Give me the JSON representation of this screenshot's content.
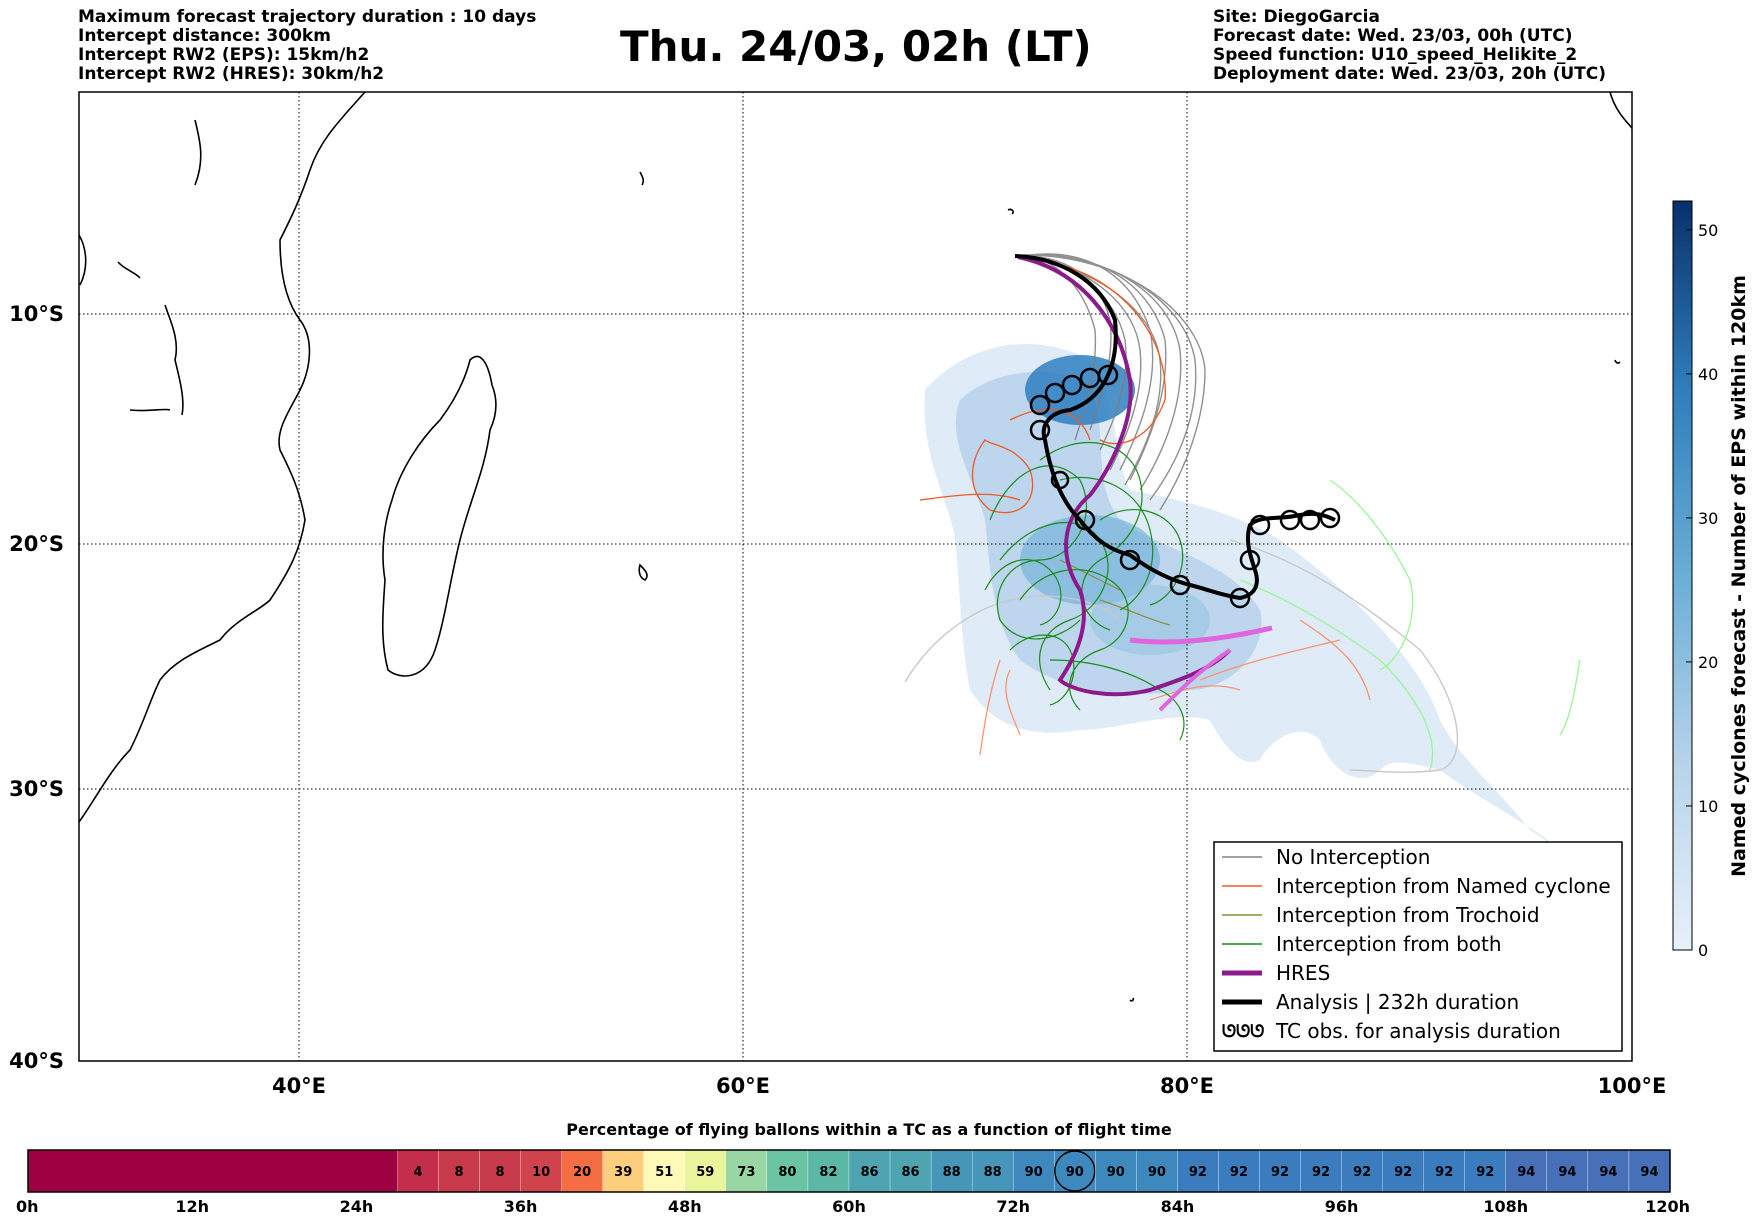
{
  "header_left": [
    "Maximum forecast trajectory duration : 10 days",
    "Intercept distance: 300km",
    "Intercept RW2 (EPS):  15km/h2",
    "Intercept RW2 (HRES): 30km/h2"
  ],
  "title": "Thu. 24/03, 02h (LT)",
  "header_right": [
    "Site: DiegoGarcia",
    "Forecast date: Wed. 23/03, 00h (UTC)",
    "Speed function: U10_speed_Helikite_2",
    "Deployment date: Wed. 23/03, 20h (UTC)"
  ],
  "map": {
    "lon_labels": [
      "40°E",
      "60°E",
      "80°E",
      "100°E"
    ],
    "lat_labels": [
      "10°S",
      "20°S",
      "30°S",
      "40°S"
    ],
    "grid": true
  },
  "legend": [
    {
      "label": "No Interception",
      "color": "#808080",
      "kind": "line"
    },
    {
      "label": "Interception from Named cyclone",
      "color": "#f05a23",
      "kind": "line"
    },
    {
      "label": "Interception from Trochoid",
      "color": "#8b8b3a",
      "kind": "line"
    },
    {
      "label": "Interception from both",
      "color": "#1a8c1a",
      "kind": "line"
    },
    {
      "label": "HRES",
      "color": "#8b1a8b",
      "kind": "thick"
    },
    {
      "label": "Analysis | 232h duration",
      "color": "#000000",
      "kind": "thick"
    },
    {
      "label": "TC obs. for analysis duration",
      "color": "#000000",
      "kind": "symbol",
      "symbol": "ᘎᘎᘎ"
    }
  ],
  "colorbar_right": {
    "label": "Named cyclones forecast - Number of EPS within 120km",
    "ticks": [
      "0",
      "10",
      "20",
      "30",
      "40",
      "50"
    ],
    "range": [
      0,
      52
    ]
  },
  "bottom_bar": {
    "title": "Percentage of flying ballons within a TC as a function of flight time",
    "values": [
      "4",
      "8",
      "8",
      "10",
      "20",
      "39",
      "51",
      "59",
      "73",
      "80",
      "82",
      "86",
      "86",
      "88",
      "88",
      "90",
      "90",
      "90",
      "90",
      "92",
      "92",
      "92",
      "92",
      "92",
      "92",
      "92",
      "92",
      "94",
      "94",
      "94",
      "94"
    ],
    "colors": [
      "#c32f4b",
      "#c73a4c",
      "#c73a4c",
      "#d0434d",
      "#f46d43",
      "#fdce7c",
      "#fff9b7",
      "#e8f59b",
      "#99d6a4",
      "#6bc4a4",
      "#5cb8a6",
      "#4ea4b0",
      "#4ea4b0",
      "#4696b9",
      "#4696b9",
      "#3d88bd",
      "#3d88bd",
      "#3d88bd",
      "#3d88bd",
      "#3b7cbf",
      "#3b7cbf",
      "#3b7cbf",
      "#3b7cbf",
      "#3b7cbf",
      "#3b7cbf",
      "#3b7cbf",
      "#3b7cbf",
      "#4671b8",
      "#4671b8",
      "#4671b8",
      "#4671b8"
    ],
    "empty_color": "#9e0142",
    "circled_index": 16,
    "time_labels": [
      "0h",
      "12h",
      "24h",
      "36h",
      "48h",
      "60h",
      "72h",
      "84h",
      "96h",
      "108h",
      "120h"
    ]
  }
}
